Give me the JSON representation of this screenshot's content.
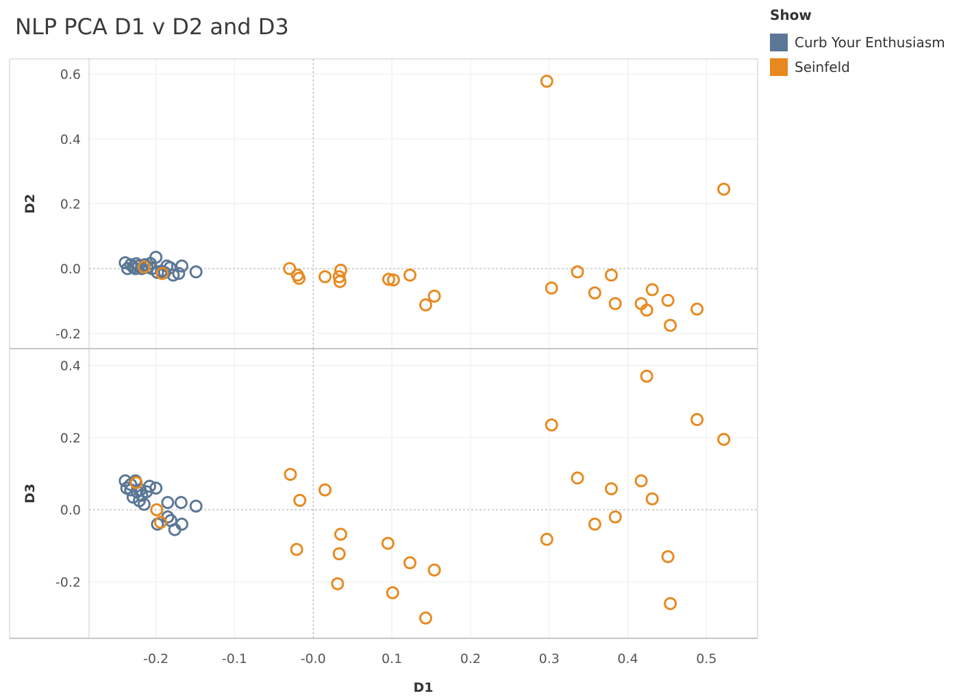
{
  "chart_data": {
    "type": "scatter",
    "title": "NLP PCA D1 v D2 and D3",
    "xlabel": "D1",
    "xlim": [
      -0.285,
      0.565
    ],
    "xticks": [
      -0.2,
      -0.1,
      0.0,
      0.1,
      0.2,
      0.3,
      0.4,
      0.5
    ],
    "xtick_labels": [
      "-0.2",
      "-0.1",
      "-0.0",
      "0.1",
      "0.2",
      "0.3",
      "0.4",
      "0.5"
    ],
    "grid": true,
    "legend": {
      "title": "Show",
      "placement": "top-right",
      "entries": [
        {
          "name": "Curb Your Enthusiasm",
          "color": "#5B7796"
        },
        {
          "name": "Seinfeld",
          "color": "#E8891F"
        }
      ]
    },
    "panels": [
      {
        "ylabel": "D2",
        "ylim": [
          -0.23,
          0.63
        ],
        "yticks": [
          -0.2,
          0.0,
          0.2,
          0.4,
          0.6
        ],
        "ytick_labels": [
          "-0.2",
          "0.0",
          "0.2",
          "0.4",
          "0.6"
        ],
        "series": [
          {
            "name": "Curb Your Enthusiasm",
            "color": "#5B7796",
            "points": [
              [
                -0.239,
                0.018
              ],
              [
                -0.236,
                0.0
              ],
              [
                -0.232,
                0.012
              ],
              [
                -0.229,
                0.005
              ],
              [
                -0.225,
                0.015
              ],
              [
                -0.222,
                0.008
              ],
              [
                -0.218,
                0.0
              ],
              [
                -0.214,
                0.012
              ],
              [
                -0.211,
                0.004
              ],
              [
                -0.207,
                0.016
              ],
              [
                -0.2,
                0.035
              ],
              [
                -0.198,
                -0.012
              ],
              [
                -0.193,
                -0.008
              ],
              [
                -0.186,
                0.008
              ],
              [
                -0.182,
                0.003
              ],
              [
                -0.178,
                -0.02
              ],
              [
                -0.171,
                -0.015
              ],
              [
                -0.167,
                0.008
              ],
              [
                -0.149,
                -0.01
              ],
              [
                -0.226,
                0.0
              ],
              [
                -0.205,
                0.0
              ],
              [
                -0.189,
                -0.012
              ]
            ]
          },
          {
            "name": "Seinfeld",
            "color": "#E8891F",
            "points": [
              [
                -0.03,
                0.0
              ],
              [
                -0.02,
                -0.02
              ],
              [
                -0.018,
                -0.03
              ],
              [
                0.015,
                -0.025
              ],
              [
                0.033,
                -0.025
              ],
              [
                0.034,
                -0.04
              ],
              [
                0.035,
                -0.005
              ],
              [
                0.096,
                -0.033
              ],
              [
                0.102,
                -0.035
              ],
              [
                0.123,
                -0.02
              ],
              [
                0.143,
                -0.112
              ],
              [
                0.154,
                -0.085
              ],
              [
                0.297,
                0.578
              ],
              [
                0.303,
                -0.06
              ],
              [
                0.336,
                -0.01
              ],
              [
                0.358,
                -0.075
              ],
              [
                0.379,
                -0.02
              ],
              [
                0.384,
                -0.108
              ],
              [
                0.417,
                -0.108
              ],
              [
                0.424,
                -0.128
              ],
              [
                0.431,
                -0.065
              ],
              [
                0.451,
                -0.098
              ],
              [
                0.454,
                -0.175
              ],
              [
                0.488,
                -0.125
              ],
              [
                0.522,
                0.245
              ],
              [
                -0.215,
                0.005
              ],
              [
                -0.192,
                -0.015
              ]
            ]
          }
        ]
      },
      {
        "ylabel": "D3",
        "ylim": [
          -0.345,
          0.435
        ],
        "yticks": [
          -0.2,
          0.0,
          0.2,
          0.4
        ],
        "ytick_labels": [
          "-0.2",
          "0.0",
          "0.2",
          "0.4"
        ],
        "series": [
          {
            "name": "Curb Your Enthusiasm",
            "color": "#5B7796",
            "points": [
              [
                -0.239,
                0.08
              ],
              [
                -0.237,
                0.06
              ],
              [
                -0.232,
                0.07
              ],
              [
                -0.229,
                0.035
              ],
              [
                -0.226,
                0.08
              ],
              [
                -0.224,
                0.05
              ],
              [
                -0.221,
                0.025
              ],
              [
                -0.218,
                0.04
              ],
              [
                -0.215,
                0.015
              ],
              [
                -0.212,
                0.05
              ],
              [
                -0.208,
                0.065
              ],
              [
                -0.2,
                0.06
              ],
              [
                -0.198,
                -0.04
              ],
              [
                -0.185,
                0.02
              ],
              [
                -0.185,
                -0.02
              ],
              [
                -0.181,
                -0.03
              ],
              [
                -0.176,
                -0.055
              ],
              [
                -0.168,
                0.02
              ],
              [
                -0.167,
                -0.04
              ],
              [
                -0.149,
                0.01
              ],
              [
                -0.232,
                0.055
              ],
              [
                -0.22,
                0.055
              ]
            ]
          },
          {
            "name": "Seinfeld",
            "color": "#E8891F",
            "points": [
              [
                -0.029,
                0.098
              ],
              [
                -0.021,
                -0.11
              ],
              [
                -0.017,
                0.026
              ],
              [
                0.015,
                0.055
              ],
              [
                0.031,
                -0.205
              ],
              [
                0.033,
                -0.122
              ],
              [
                0.035,
                -0.068
              ],
              [
                0.095,
                -0.093
              ],
              [
                0.101,
                -0.23
              ],
              [
                0.123,
                -0.147
              ],
              [
                0.143,
                -0.3
              ],
              [
                0.154,
                -0.167
              ],
              [
                0.297,
                -0.082
              ],
              [
                0.303,
                0.235
              ],
              [
                0.336,
                0.088
              ],
              [
                0.358,
                -0.04
              ],
              [
                0.379,
                0.058
              ],
              [
                0.384,
                -0.02
              ],
              [
                0.417,
                0.08
              ],
              [
                0.424,
                0.37
              ],
              [
                0.431,
                0.03
              ],
              [
                0.451,
                -0.13
              ],
              [
                0.454,
                -0.26
              ],
              [
                0.488,
                0.25
              ],
              [
                0.522,
                0.195
              ],
              [
                -0.199,
                0.0
              ],
              [
                -0.194,
                -0.035
              ],
              [
                -0.225,
                0.075
              ]
            ]
          }
        ]
      }
    ]
  }
}
